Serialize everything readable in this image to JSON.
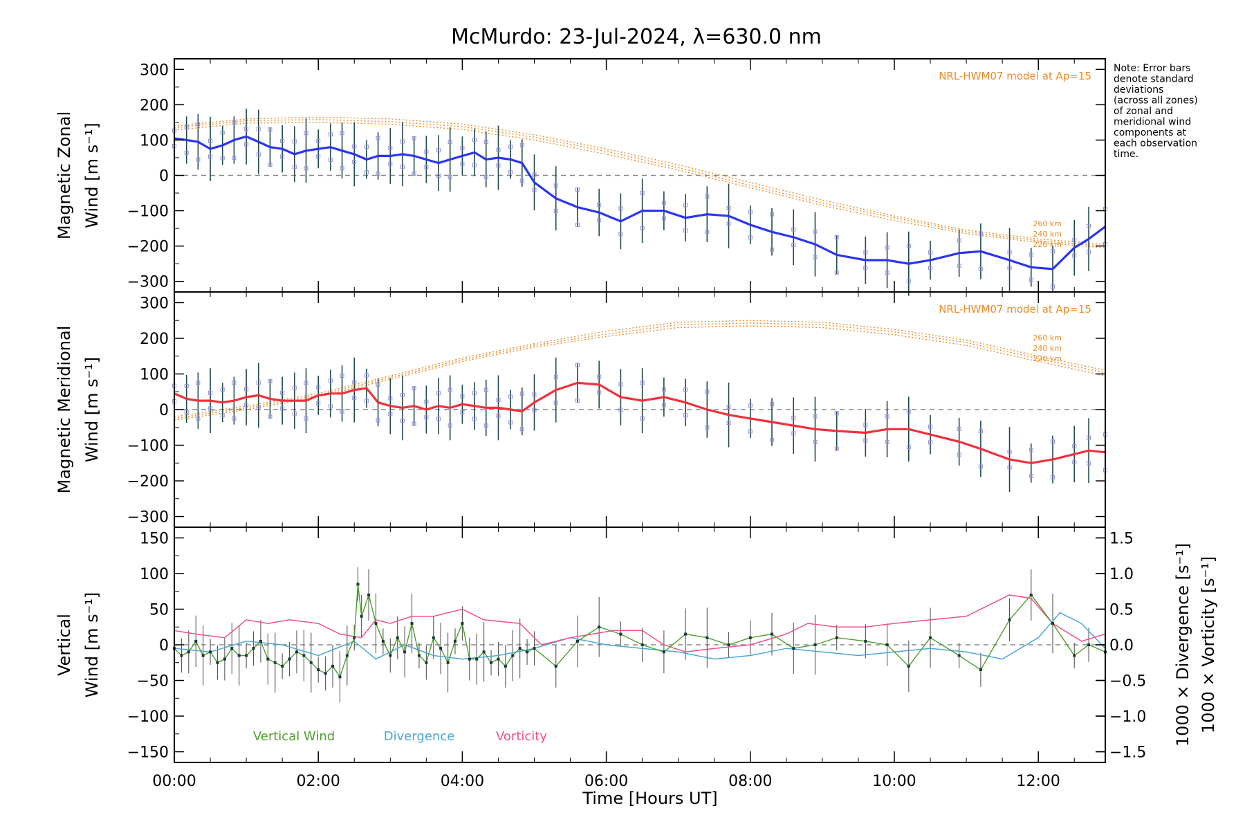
{
  "title": "McMurdo: 23-Jul-2024, λ=630.0 nm",
  "note": "Note: Error bars\ndenote standard\ndeviations\n(across all zones)\nof zonal and\nmeridional wind\ncomponents at\neach observation\ntime.",
  "xlabel": "Time [Hours UT]",
  "xticks": [
    "00:00",
    "02:00",
    "04:00",
    "06:00",
    "08:00",
    "10:00",
    "12:00"
  ],
  "model_label": "NRL-HWM07 model at Ap=15",
  "altitudes": [
    "260 km",
    "240 km",
    "220 km"
  ],
  "colors": {
    "zonal": "#2a35f0",
    "meridional": "#f0303c",
    "vertical": "#4aa02a",
    "divergence": "#4aa6d6",
    "vorticity": "#f0508a",
    "model": "#f08a24"
  },
  "chart_data": [
    {
      "type": "line",
      "panel": "zonal",
      "ylabel_line1": "Magnetic Zonal",
      "ylabel_line2": "Wind [m s⁻¹]",
      "ylim": [
        -330,
        330
      ],
      "yticks": [
        "300",
        "200",
        "100",
        "0",
        "−100",
        "−200",
        "−300"
      ],
      "xlim": [
        0,
        12.93
      ],
      "x": [
        0.0,
        0.17,
        0.33,
        0.5,
        0.67,
        0.83,
        1.0,
        1.17,
        1.33,
        1.5,
        1.67,
        1.83,
        2.0,
        2.17,
        2.33,
        2.5,
        2.67,
        2.83,
        3.0,
        3.17,
        3.33,
        3.5,
        3.67,
        3.83,
        4.0,
        4.17,
        4.33,
        4.5,
        4.67,
        4.83,
        5.0,
        5.3,
        5.6,
        5.9,
        6.2,
        6.5,
        6.8,
        7.1,
        7.4,
        7.7,
        8.0,
        8.3,
        8.6,
        8.9,
        9.2,
        9.6,
        9.9,
        10.2,
        10.5,
        10.9,
        11.2,
        11.6,
        11.9,
        12.2,
        12.5,
        12.7,
        12.93
      ],
      "series": [
        {
          "values": [
            105,
            100,
            95,
            75,
            85,
            100,
            110,
            95,
            80,
            75,
            60,
            70,
            75,
            80,
            70,
            60,
            45,
            55,
            55,
            60,
            55,
            45,
            35,
            45,
            55,
            65,
            45,
            50,
            45,
            35,
            -20,
            -65,
            -90,
            -105,
            -130,
            -100,
            -100,
            -120,
            -110,
            -115,
            -140,
            -160,
            -175,
            -195,
            -225,
            -240,
            -240,
            -250,
            -240,
            -220,
            -215,
            -240,
            -260,
            -265,
            -205,
            -180,
            -145
          ]
        }
      ],
      "model": {
        "x": [
          0,
          1,
          2,
          3,
          4,
          5,
          6,
          7,
          8,
          9,
          10,
          11,
          12,
          12.93
        ],
        "series": [
          {
            "name": "260 km",
            "values": [
              140,
              160,
              165,
              160,
              145,
              115,
              75,
              30,
              -20,
              -70,
              -115,
              -155,
              -180,
              -195
            ]
          },
          {
            "name": "240 km",
            "values": [
              135,
              155,
              158,
              152,
              138,
              108,
              68,
              22,
              -28,
              -78,
              -120,
              -160,
              -185,
              -200
            ]
          },
          {
            "name": "220 km",
            "values": [
              128,
              148,
              150,
              145,
              130,
              100,
              60,
              15,
              -35,
              -85,
              -128,
              -165,
              -190,
              -205
            ]
          }
        ]
      }
    },
    {
      "type": "line",
      "panel": "meridional",
      "ylabel_line1": "Magnetic Meridional",
      "ylabel_line2": "Wind [m s⁻¹]",
      "ylim": [
        -330,
        330
      ],
      "yticks": [
        "300",
        "200",
        "100",
        "0",
        "−100",
        "−200",
        "−300"
      ],
      "xlim": [
        0,
        12.93
      ],
      "x": [
        0.0,
        0.17,
        0.33,
        0.5,
        0.67,
        0.83,
        1.0,
        1.17,
        1.33,
        1.5,
        1.67,
        1.83,
        2.0,
        2.17,
        2.33,
        2.5,
        2.67,
        2.83,
        3.0,
        3.17,
        3.33,
        3.5,
        3.67,
        3.83,
        4.0,
        4.17,
        4.33,
        4.5,
        4.67,
        4.83,
        5.0,
        5.3,
        5.6,
        5.9,
        6.2,
        6.5,
        6.8,
        7.1,
        7.4,
        7.7,
        8.0,
        8.3,
        8.6,
        8.9,
        9.2,
        9.6,
        9.9,
        10.2,
        10.5,
        10.9,
        11.2,
        11.6,
        11.9,
        12.2,
        12.5,
        12.7,
        12.93
      ],
      "series": [
        {
          "values": [
            45,
            30,
            25,
            25,
            20,
            25,
            35,
            40,
            30,
            25,
            25,
            25,
            40,
            45,
            45,
            55,
            60,
            20,
            10,
            5,
            10,
            0,
            10,
            5,
            15,
            10,
            5,
            5,
            0,
            -5,
            20,
            55,
            75,
            70,
            35,
            25,
            35,
            20,
            0,
            -15,
            -25,
            -35,
            -45,
            -55,
            -60,
            -65,
            -55,
            -55,
            -70,
            -90,
            -110,
            -140,
            -150,
            -140,
            -125,
            -115,
            -120
          ]
        }
      ],
      "model": {
        "x": [
          0,
          1,
          2,
          3,
          4,
          5,
          6,
          7,
          8,
          9,
          10,
          11,
          12,
          12.93
        ],
        "series": [
          {
            "name": "260 km",
            "values": [
              -20,
              10,
              45,
              95,
              145,
              185,
              220,
              245,
              250,
              245,
              225,
              195,
              150,
              110
            ]
          },
          {
            "name": "240 km",
            "values": [
              -25,
              5,
              40,
              90,
              140,
              180,
              212,
              238,
              243,
              238,
              218,
              188,
              143,
              103
            ]
          },
          {
            "name": "220 km",
            "values": [
              -30,
              0,
              35,
              85,
              135,
              175,
              205,
              230,
              235,
              230,
              210,
              180,
              135,
              95
            ]
          }
        ]
      }
    },
    {
      "type": "line",
      "panel": "vertical",
      "ylabel_line1": "Vertical",
      "ylabel_line2": "Wind [m s⁻¹]",
      "y2label_div": "1000 × Divergence [s⁻¹]",
      "y2label_vort": "1000 × Vorticity [s⁻¹]",
      "ylim": [
        -165,
        165
      ],
      "yticks": [
        "150",
        "100",
        "50",
        "0",
        "−50",
        "−100",
        "−150"
      ],
      "y2lim": [
        -1.65,
        1.65
      ],
      "y2ticks": [
        "1.5",
        "1.0",
        "0.5",
        "0.0",
        "−0.5",
        "−1.0",
        "−1.5"
      ],
      "xlim": [
        0,
        12.93
      ],
      "vertical_wind": {
        "x": [
          0.0,
          0.1,
          0.2,
          0.3,
          0.4,
          0.5,
          0.6,
          0.7,
          0.8,
          0.9,
          1.0,
          1.1,
          1.2,
          1.3,
          1.4,
          1.5,
          1.6,
          1.7,
          1.8,
          1.9,
          2.0,
          2.1,
          2.2,
          2.3,
          2.4,
          2.5,
          2.55,
          2.6,
          2.7,
          2.8,
          2.9,
          3.0,
          3.1,
          3.2,
          3.3,
          3.4,
          3.5,
          3.6,
          3.7,
          3.8,
          3.9,
          4.0,
          4.1,
          4.2,
          4.3,
          4.4,
          4.5,
          4.6,
          4.7,
          4.8,
          4.9,
          5.0,
          5.3,
          5.6,
          5.9,
          6.2,
          6.5,
          6.8,
          7.1,
          7.4,
          7.7,
          8.0,
          8.3,
          8.6,
          8.9,
          9.2,
          9.6,
          9.9,
          10.2,
          10.5,
          10.9,
          11.2,
          11.6,
          11.9,
          12.2,
          12.5,
          12.7,
          12.93
        ],
        "values": [
          -5,
          -15,
          -10,
          5,
          -15,
          -10,
          -25,
          -20,
          -5,
          -15,
          -15,
          -5,
          5,
          -20,
          -25,
          -30,
          -20,
          -10,
          -15,
          -25,
          -35,
          -40,
          -30,
          -45,
          -15,
          10,
          85,
          40,
          70,
          30,
          5,
          -15,
          10,
          -10,
          30,
          -15,
          -25,
          10,
          -5,
          -25,
          5,
          30,
          -20,
          -20,
          -10,
          -25,
          -20,
          -30,
          -15,
          -5,
          -10,
          -5,
          -30,
          5,
          25,
          15,
          0,
          -10,
          15,
          10,
          0,
          10,
          15,
          -5,
          0,
          10,
          5,
          0,
          -30,
          10,
          -15,
          -35,
          35,
          70,
          30,
          -15,
          0,
          -10
        ]
      },
      "divergence": {
        "x": [
          0.0,
          0.5,
          1.0,
          1.5,
          2.0,
          2.5,
          2.8,
          3.2,
          3.6,
          4.0,
          4.5,
          5.0,
          5.5,
          6.0,
          6.5,
          7.0,
          7.5,
          8.0,
          8.5,
          9.0,
          9.5,
          10.0,
          10.5,
          11.0,
          11.5,
          12.0,
          12.3,
          12.6,
          12.93
        ],
        "values": [
          -0.05,
          -0.1,
          0.05,
          0.0,
          -0.15,
          0.05,
          -0.2,
          0.0,
          -0.15,
          -0.2,
          -0.15,
          -0.05,
          0.1,
          0.0,
          -0.05,
          -0.1,
          -0.2,
          -0.15,
          -0.05,
          -0.1,
          -0.15,
          -0.1,
          -0.05,
          -0.1,
          -0.2,
          0.1,
          0.45,
          0.3,
          -0.05
        ]
      },
      "vorticity": {
        "x": [
          0.0,
          0.3,
          0.7,
          1.0,
          1.3,
          1.6,
          2.0,
          2.3,
          2.6,
          2.8,
          3.0,
          3.3,
          3.6,
          4.0,
          4.3,
          4.8,
          5.1,
          5.5,
          5.8,
          6.1,
          6.5,
          6.8,
          7.1,
          7.5,
          8.0,
          8.5,
          8.8,
          9.2,
          9.6,
          10.0,
          10.5,
          11.0,
          11.6,
          11.9,
          12.2,
          12.6,
          12.93
        ],
        "values": [
          0.2,
          0.15,
          0.1,
          0.35,
          0.3,
          0.35,
          0.3,
          0.15,
          0.1,
          0.35,
          0.3,
          0.4,
          0.4,
          0.5,
          0.35,
          0.3,
          0.0,
          0.1,
          0.15,
          0.2,
          0.2,
          0.0,
          -0.1,
          -0.05,
          0.0,
          0.15,
          0.3,
          0.25,
          0.25,
          0.3,
          0.35,
          0.4,
          0.7,
          0.65,
          0.3,
          0.05,
          0.15
        ]
      },
      "legend": [
        "Vertical Wind",
        "Divergence",
        "Vorticity"
      ]
    }
  ]
}
